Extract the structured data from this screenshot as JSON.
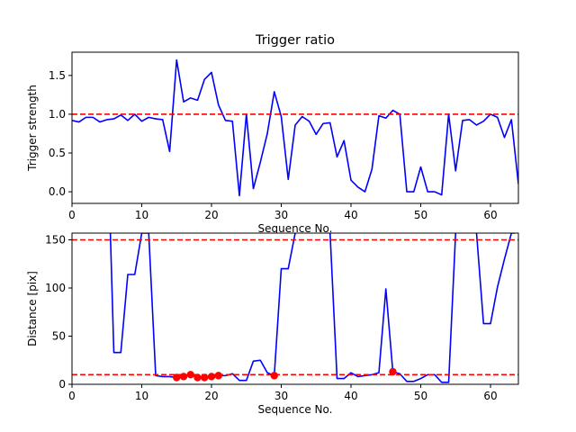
{
  "chart_data": [
    {
      "type": "line",
      "title": "Trigger ratio",
      "xlabel": "Sequence No.",
      "ylabel": "Trigger strength",
      "xlim": [
        0,
        64
      ],
      "ylim": [
        -0.15,
        1.8
      ],
      "xticks": [
        0,
        10,
        20,
        30,
        40,
        50,
        60
      ],
      "yticks": [
        0.0,
        0.5,
        1.0,
        1.5
      ],
      "ytick_labels": [
        "0.0",
        "0.5",
        "1.0",
        "1.5"
      ],
      "series": [
        {
          "color": "#0000ff",
          "x": [
            0,
            1,
            2,
            3,
            4,
            5,
            6,
            7,
            8,
            9,
            10,
            11,
            12,
            13,
            14,
            15,
            16,
            17,
            18,
            19,
            20,
            21,
            22,
            23,
            24,
            25,
            26,
            27,
            28,
            29,
            30,
            31,
            32,
            33,
            34,
            35,
            36,
            37,
            38,
            39,
            40,
            41,
            42,
            43,
            44,
            45,
            46,
            47,
            48,
            49,
            50,
            51,
            52,
            53,
            54,
            55,
            56,
            57,
            58,
            59,
            60,
            61,
            62,
            63,
            64
          ],
          "y": [
            0.92,
            0.9,
            0.96,
            0.96,
            0.9,
            0.93,
            0.94,
            0.99,
            0.92,
            1.0,
            0.91,
            0.96,
            0.94,
            0.93,
            0.52,
            1.7,
            1.16,
            1.21,
            1.18,
            1.45,
            1.54,
            1.12,
            0.92,
            0.91,
            -0.05,
            1.0,
            0.04,
            0.38,
            0.75,
            1.29,
            0.97,
            0.16,
            0.86,
            0.97,
            0.91,
            0.74,
            0.88,
            0.89,
            0.45,
            0.66,
            0.15,
            0.06,
            0.0,
            0.29,
            0.98,
            0.95,
            1.05,
            1.0,
            0.0,
            0.0,
            0.32,
            0.0,
            0.0,
            -0.04,
            1.0,
            0.27,
            0.92,
            0.93,
            0.86,
            0.91,
            1.0,
            0.96,
            0.7,
            0.93,
            0.1
          ]
        }
      ],
      "hlines": [
        {
          "y": 1.0,
          "color": "#ff0000",
          "style": "dashed"
        }
      ]
    },
    {
      "type": "line",
      "title": "",
      "xlabel": "Sequence No.",
      "ylabel": "Distance [pix]",
      "xlim": [
        0,
        64
      ],
      "ylim": [
        0,
        157
      ],
      "xticks": [
        0,
        10,
        20,
        30,
        40,
        50,
        60
      ],
      "yticks": [
        0,
        50,
        100,
        150
      ],
      "ytick_labels": [
        "0",
        "50",
        "100",
        "150"
      ],
      "series": [
        {
          "color": "#0000ff",
          "x": [
            5.5,
            6,
            7,
            8,
            9,
            10,
            11,
            12,
            13,
            14,
            15,
            16,
            17,
            18,
            19,
            20,
            21,
            22,
            23,
            24,
            25,
            26,
            27,
            28,
            29,
            30,
            31,
            32
          ],
          "y": [
            157,
            33,
            33,
            114,
            114,
            157,
            157,
            9,
            8,
            8,
            7,
            8,
            10,
            7,
            7,
            8,
            9,
            9,
            11,
            4,
            4,
            24,
            25,
            12,
            9,
            120,
            120,
            157
          ]
        },
        {
          "color": "#0000ff",
          "x": [
            37,
            38,
            39,
            40,
            41,
            42,
            43,
            44,
            45,
            46,
            47,
            48,
            49,
            50,
            51,
            52,
            53,
            54,
            55
          ],
          "y": [
            157,
            6,
            6,
            12,
            8,
            9,
            10,
            12,
            99,
            13,
            11,
            3,
            3,
            6,
            10,
            10,
            2,
            2,
            157
          ]
        },
        {
          "color": "#0000ff",
          "x": [
            58,
            59,
            60,
            61,
            62,
            63,
            63.5
          ],
          "y": [
            157,
            63,
            63,
            101,
            130,
            157,
            157
          ]
        }
      ],
      "markers": {
        "color": "#ff0000",
        "x": [
          15,
          16,
          17,
          18,
          19,
          20,
          21,
          29,
          46
        ],
        "y": [
          7,
          8,
          10,
          7,
          7,
          8,
          9,
          9,
          13
        ]
      },
      "hlines": [
        {
          "y": 150,
          "color": "#ff0000",
          "style": "dashed"
        },
        {
          "y": 10,
          "color": "#ff0000",
          "style": "dashed"
        }
      ]
    }
  ]
}
